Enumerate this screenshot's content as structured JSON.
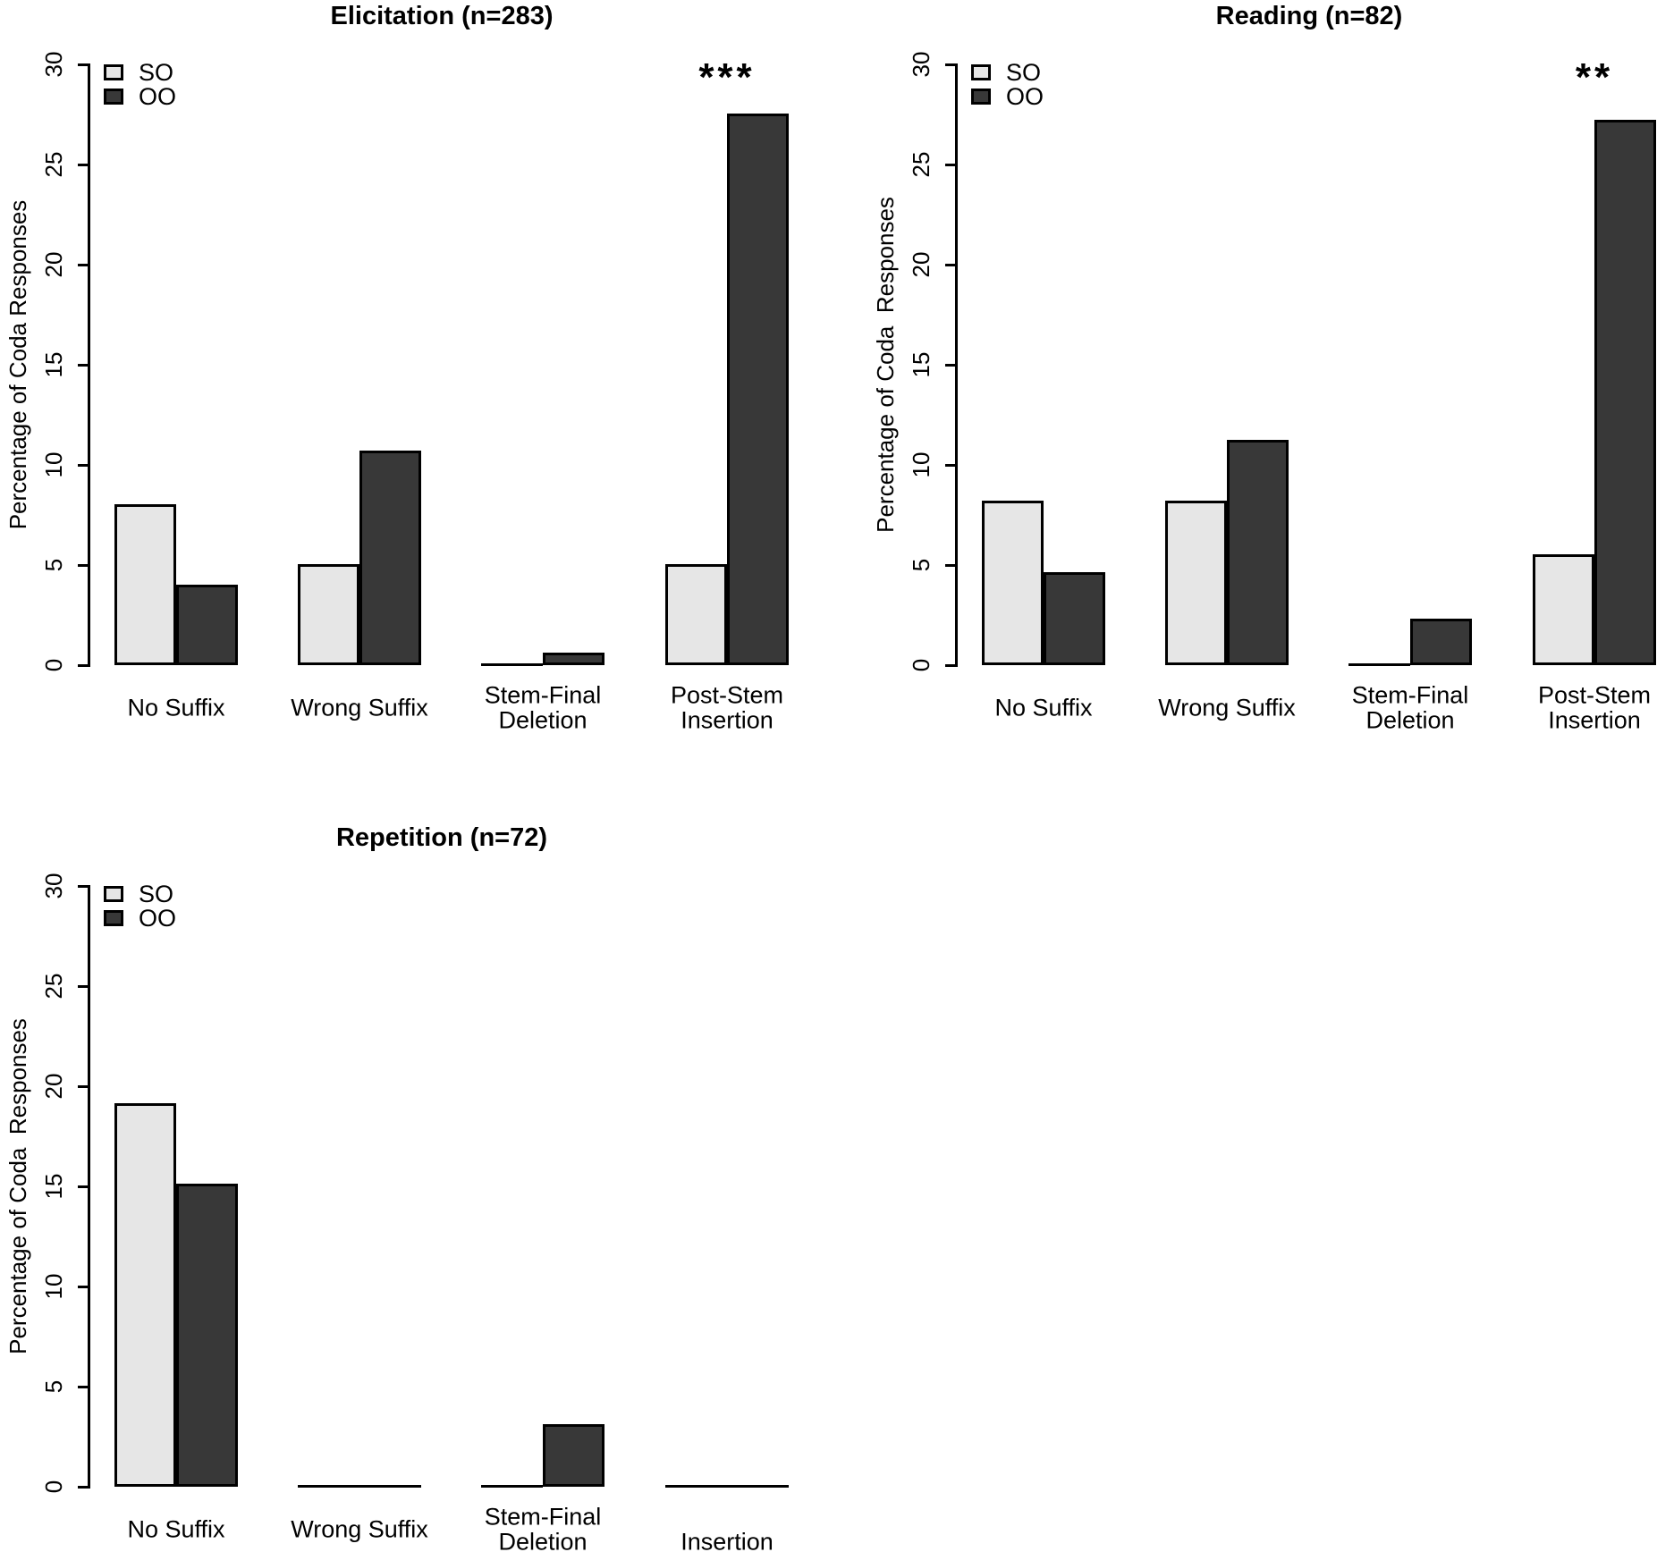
{
  "figure": {
    "background": "#ffffff",
    "text_color": "#000000",
    "series_colors": {
      "SO": "#e6e6e6",
      "OO": "#383838"
    },
    "bar_border_color": "#000000"
  },
  "chart_data": [
    {
      "type": "bar",
      "title": "Elicitation (n=283)",
      "ylabel": "Percentage of Coda Responses",
      "ylim": [
        0,
        30
      ],
      "yticks": [
        0,
        5,
        10,
        15,
        20,
        25,
        30
      ],
      "grid": false,
      "legend_position": "top-left",
      "legend": [
        "SO",
        "OO"
      ],
      "categories": [
        "No Suffix",
        "Wrong Suffix",
        "Stem-Final\nDeletion",
        "Post-Stem\nInsertion"
      ],
      "series": [
        {
          "name": "SO",
          "values": [
            7.9,
            4.9,
            0,
            4.9
          ]
        },
        {
          "name": "OO",
          "values": [
            3.9,
            10.6,
            0.5,
            27.4
          ]
        }
      ],
      "significance": {
        "text": "***",
        "category_index": 3
      }
    },
    {
      "type": "bar",
      "title": "Reading (n=82)",
      "ylabel": "Percentage of Coda  Responses",
      "ylim": [
        0,
        30
      ],
      "yticks": [
        0,
        5,
        10,
        15,
        20,
        25,
        30
      ],
      "grid": false,
      "legend_position": "top-left",
      "legend": [
        "SO",
        "OO"
      ],
      "categories": [
        "No Suffix",
        "Wrong Suffix",
        "Stem-Final\nDeletion",
        "Post-Stem\nInsertion"
      ],
      "series": [
        {
          "name": "SO",
          "values": [
            8.1,
            8.1,
            0,
            5.4
          ]
        },
        {
          "name": "OO",
          "values": [
            4.5,
            11.1,
            2.2,
            27.1
          ]
        }
      ],
      "significance": {
        "text": "**",
        "category_index": 3
      }
    },
    {
      "type": "bar",
      "title": "Repetition (n=72)",
      "ylabel": "Percentage of Coda  Responses",
      "ylim": [
        0,
        30
      ],
      "yticks": [
        0,
        5,
        10,
        15,
        20,
        25,
        30
      ],
      "grid": false,
      "legend_position": "top-left",
      "legend": [
        "SO",
        "OO"
      ],
      "categories": [
        "No Suffix",
        "Wrong Suffix",
        "Stem-Final\nDeletion",
        "\nInsertion"
      ],
      "series": [
        {
          "name": "SO",
          "values": [
            19.0,
            0,
            0,
            0
          ]
        },
        {
          "name": "OO",
          "values": [
            15.0,
            0,
            3.0,
            0
          ]
        }
      ],
      "significance": null
    }
  ]
}
